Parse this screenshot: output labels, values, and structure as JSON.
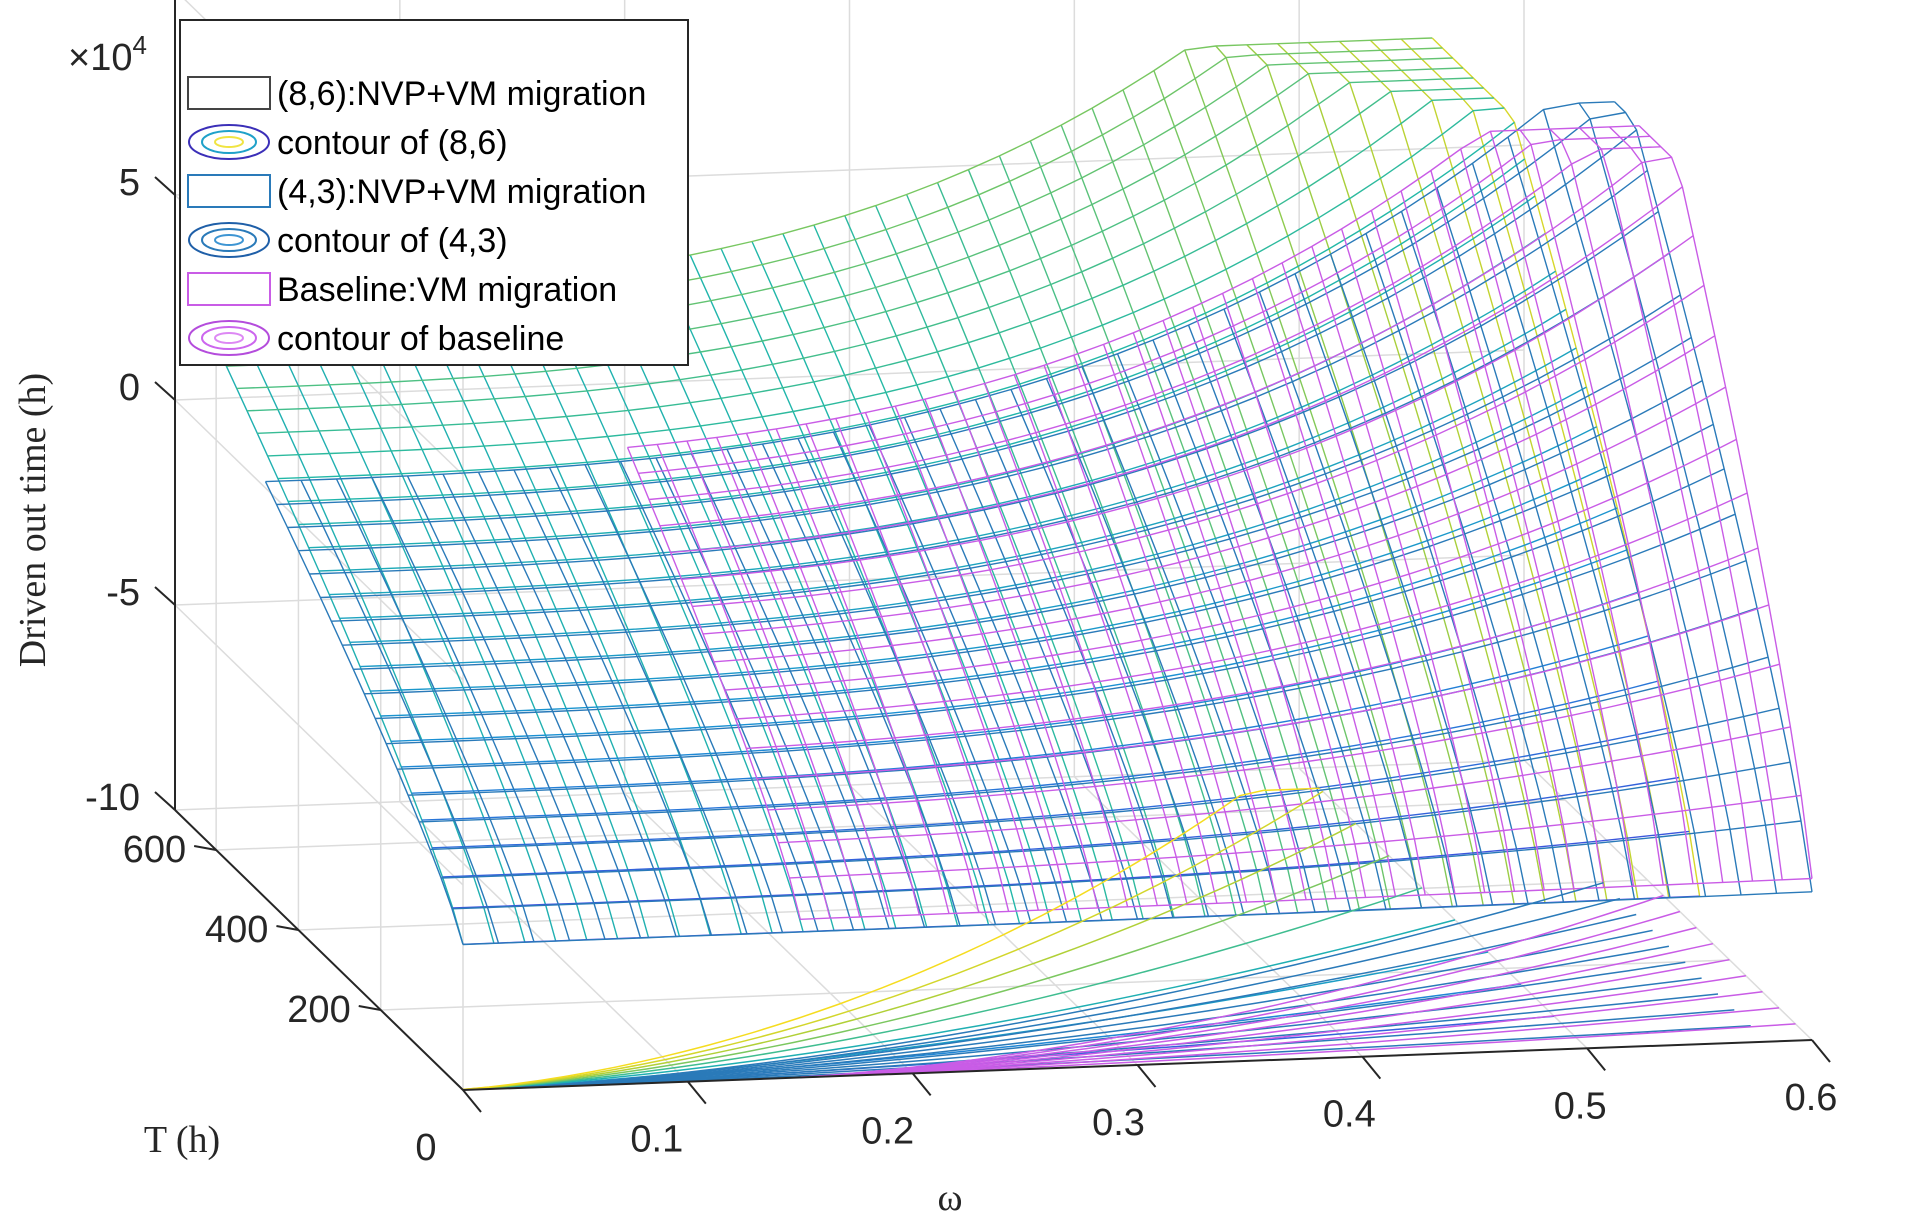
{
  "chart_data": {
    "type": "surface3d",
    "title": "",
    "xlabel": "ω",
    "ylabel": "T (h)",
    "zlabel": "Driven out time (h)",
    "z_multiplier": "×10",
    "z_exponent": "4",
    "xlim": [
      0,
      0.6
    ],
    "ylim": [
      0,
      700
    ],
    "zlim": [
      -10,
      10
    ],
    "x_ticks": [
      "0",
      "0.1",
      "0.2",
      "0.3",
      "0.4",
      "0.5",
      "0.6"
    ],
    "y_ticks": [
      "200",
      "400",
      "600"
    ],
    "z_ticks": [
      "5",
      "0",
      "-5",
      "-10"
    ],
    "grid": true,
    "legend_position": "top-left",
    "legend": [
      {
        "label": "(8,6):NVP+VM migration",
        "kind": "surface",
        "color": "#444444"
      },
      {
        "label": "contour of (8,6)",
        "kind": "contour",
        "colors": [
          "#3b2fb8",
          "#1fa1c9",
          "#f0e442"
        ]
      },
      {
        "label": "(4,3):NVP+VM migration",
        "kind": "surface",
        "color": "#2a7ab9"
      },
      {
        "label": "contour of (4,3)",
        "kind": "contour",
        "colors": [
          "#1f5fa8",
          "#2a7ab9",
          "#3d95d3"
        ]
      },
      {
        "label": "Baseline:VM migration",
        "kind": "surface",
        "color": "#c95ce6"
      },
      {
        "label": "contour of baseline",
        "kind": "contour",
        "colors": [
          "#b44cdc",
          "#cc66ee",
          "#dd88f4"
        ]
      }
    ],
    "series": [
      {
        "name": "(8,6):NVP+VM migration",
        "colormap": "parula",
        "omega_range": [
          0,
          0.55
        ],
        "z_range_x1e4": [
          -6.5,
          6.5
        ]
      },
      {
        "name": "(4,3):NVP+VM migration",
        "color": "#2a7ab9",
        "omega_range": [
          0,
          0.6
        ],
        "z_range_x1e4": [
          -6.5,
          8
        ]
      },
      {
        "name": "Baseline:VM migration",
        "color": "#c95ce6",
        "omega_range": [
          0.15,
          0.6
        ],
        "z_range_x1e4": [
          -6,
          7
        ]
      }
    ]
  }
}
